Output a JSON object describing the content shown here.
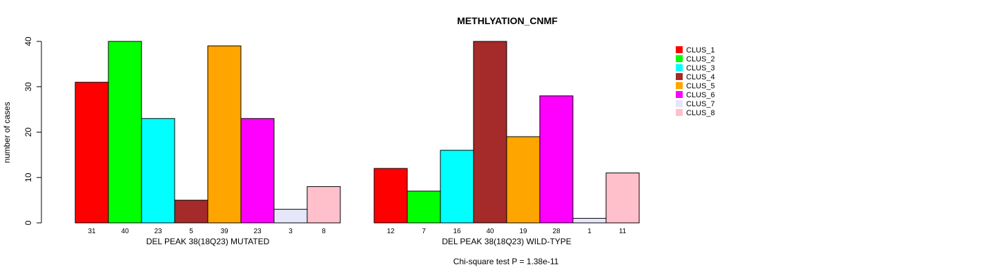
{
  "chart_data": {
    "type": "bar",
    "title": "METHLYATION_CNMF",
    "ylabel": "number of cases",
    "ylim": [
      0,
      40
    ],
    "yticks": [
      0,
      10,
      20,
      30,
      40
    ],
    "categories": [
      "CLUS_1",
      "CLUS_2",
      "CLUS_3",
      "CLUS_4",
      "CLUS_5",
      "CLUS_6",
      "CLUS_7",
      "CLUS_8"
    ],
    "colors": [
      "#ff0000",
      "#00ff00",
      "#00ffff",
      "#a52a2a",
      "#ffa500",
      "#ff00ff",
      "#e6e6fa",
      "#ffc0cb"
    ],
    "groups": [
      {
        "label": "DEL PEAK 38(18Q23) MUTATED",
        "values": [
          31,
          40,
          23,
          5,
          39,
          23,
          3,
          8
        ]
      },
      {
        "label": "DEL PEAK 38(18Q23) WILD-TYPE",
        "values": [
          12,
          7,
          16,
          40,
          19,
          28,
          1,
          11
        ]
      }
    ],
    "footnote": "Chi-square test P = 1.38e-11",
    "legend_position": "top-right",
    "grid": false
  }
}
